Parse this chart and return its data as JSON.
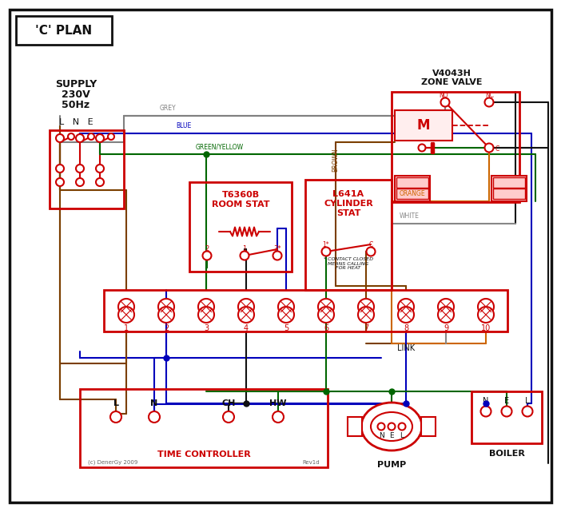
{
  "title": "'C' PLAN",
  "bg": "#ffffff",
  "red": "#cc0000",
  "grey": "#808080",
  "blue": "#0000bb",
  "green": "#006600",
  "brown": "#7B3F00",
  "black": "#111111",
  "orange": "#cc6600",
  "white_wire": "#888888",
  "supply_text1": "SUPPLY",
  "supply_text2": "230V",
  "supply_text3": "50Hz",
  "lne": "L   N   E",
  "zone_label1": "V4043H",
  "zone_label2": "ZONE VALVE",
  "room_stat1": "T6360B",
  "room_stat2": "ROOM STAT",
  "cyl_stat1": "L641A",
  "cyl_stat2": "CYLINDER",
  "cyl_stat3": "STAT",
  "tc_label": "TIME CONTROLLER",
  "pump_label": "PUMP",
  "boiler_label": "BOILER",
  "link_label": "LINK",
  "contact_note": "* CONTACT CLOSED\nMEANS CALLING\nFOR HEAT",
  "copyright": "(c) DenerGy 2009",
  "rev": "Rev1d",
  "grey_lbl": "GREY",
  "blue_lbl": "BLUE",
  "gy_lbl": "GREEN/YELLOW",
  "brown_lbl": "BROWN",
  "white_lbl": "WHITE",
  "orange_lbl": "ORANGE"
}
